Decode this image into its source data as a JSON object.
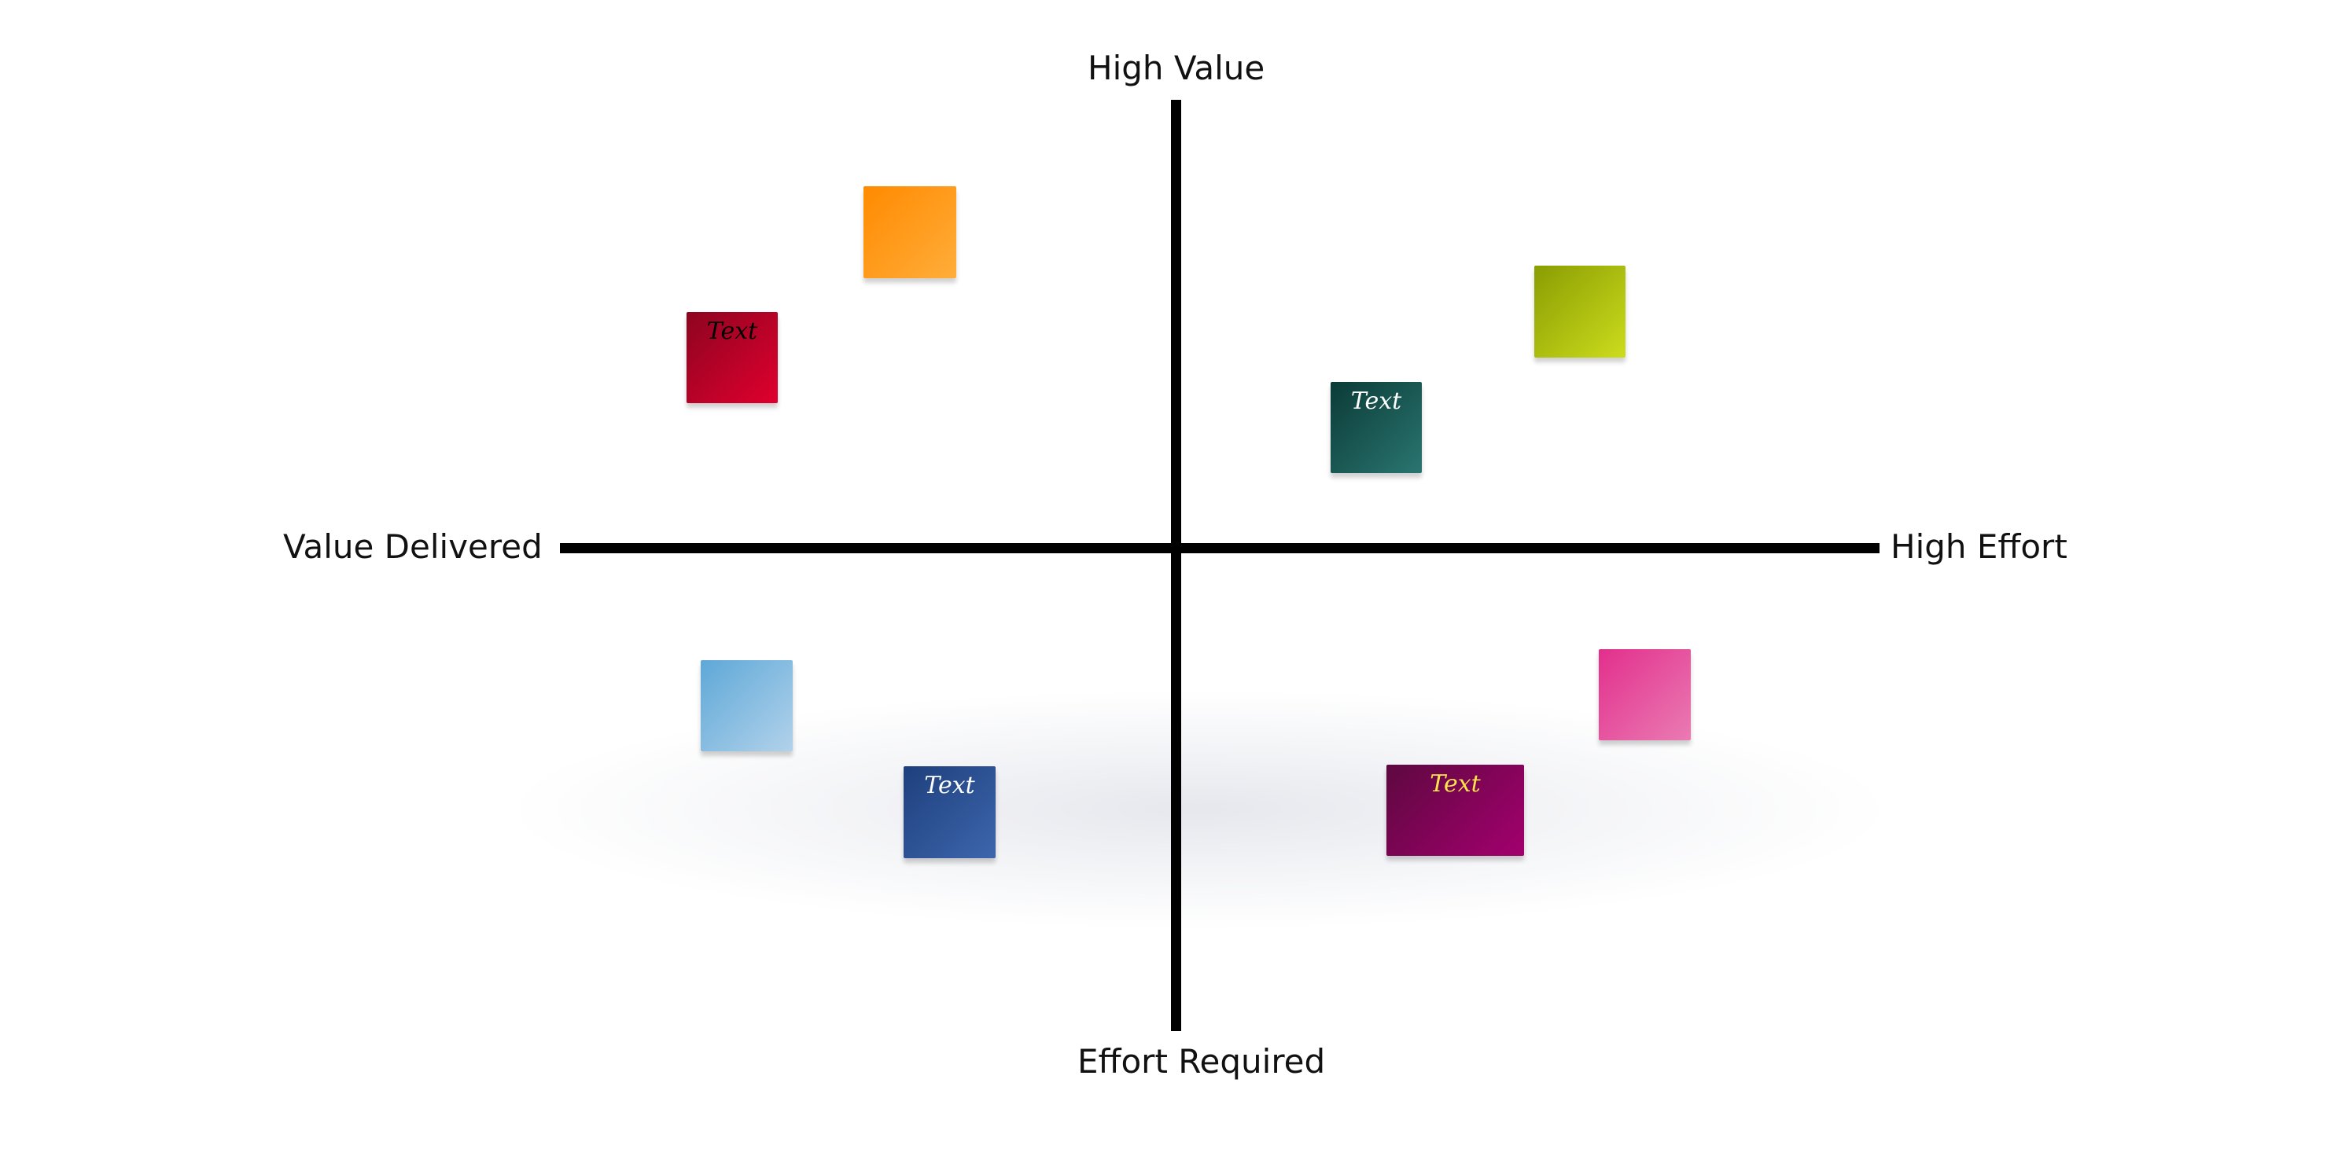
{
  "axes": {
    "top_label": "High Value",
    "bottom_label": "Effort Required",
    "left_label": "Value Delivered",
    "right_label": "High Effort"
  },
  "notes": [
    {
      "id": "orange",
      "color": "#ff9a1a",
      "text": ""
    },
    {
      "id": "red",
      "color": "#b8002a",
      "text": "Text",
      "text_color": "#000000"
    },
    {
      "id": "lime",
      "color": "#aabf10",
      "text": ""
    },
    {
      "id": "teal",
      "color": "#1b5854",
      "text": "Text",
      "text_color": "#ffffff"
    },
    {
      "id": "sky",
      "color": "#88bde2",
      "text": ""
    },
    {
      "id": "navy",
      "color": "#2d5294",
      "text": "Text",
      "text_color": "#ffffff"
    },
    {
      "id": "pink",
      "color": "#e6559f",
      "text": ""
    },
    {
      "id": "plum",
      "color": "#800457",
      "text": "Text",
      "text_color": "#ffe44d"
    }
  ]
}
